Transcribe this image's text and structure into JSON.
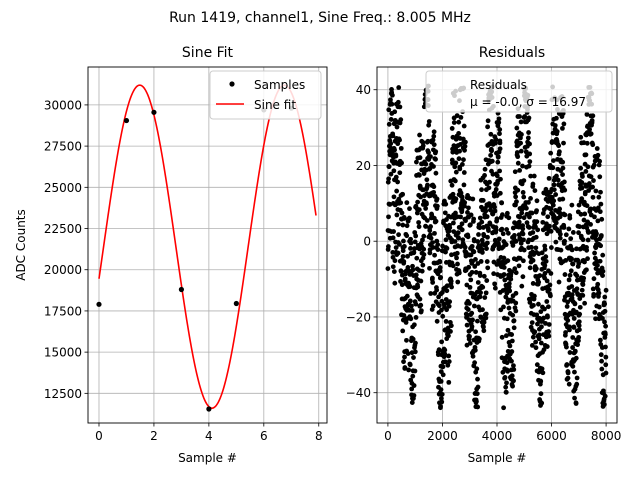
{
  "figure": {
    "suptitle": "Run 1419, channel1, Sine Freq.: 8.005 MHz"
  },
  "chart_data": [
    {
      "type": "line",
      "title": "Sine Fit",
      "xlabel": "Sample #",
      "ylabel": "ADC Counts",
      "xlim": [
        -0.4,
        8.3
      ],
      "ylim": [
        10700,
        32300
      ],
      "xticks": [
        0,
        2,
        4,
        6,
        8
      ],
      "yticks": [
        12500,
        15000,
        17500,
        20000,
        22500,
        25000,
        27500,
        30000
      ],
      "ytick_labels": [
        "12500",
        "15000",
        "17500",
        "20000",
        "22500",
        "25000",
        "27500",
        "30000"
      ],
      "grid": true,
      "legend": {
        "position": "top-right",
        "entries": [
          "Samples",
          "Sine fit"
        ]
      },
      "series": [
        {
          "name": "Samples",
          "kind": "scatter",
          "color": "#000000",
          "x": [
            0,
            1,
            2,
            3,
            4,
            5,
            6,
            7
          ],
          "y": [
            17900,
            29050,
            29550,
            18800,
            11550,
            17950,
            29700,
            29800
          ]
        },
        {
          "name": "Sine fit",
          "kind": "line",
          "color": "#ff0000",
          "model": {
            "offset": 21400,
            "amplitude": 9800,
            "cycles_per_sample": 0.19,
            "phase": -0.2
          },
          "x_range": [
            0,
            7.9
          ]
        }
      ]
    },
    {
      "type": "scatter",
      "title": "Residuals",
      "xlabel": "Sample #",
      "ylabel": "",
      "xlim": [
        -400,
        8400
      ],
      "ylim": [
        -48,
        46
      ],
      "xticks": [
        0,
        2000,
        4000,
        6000,
        8000
      ],
      "yticks": [
        -40,
        -20,
        0,
        20,
        40
      ],
      "ytick_labels": [
        "−40",
        "−20",
        "0",
        "20",
        "40"
      ],
      "grid": true,
      "legend": {
        "position": "top-right",
        "entries": [
          "Residuals",
          "μ = -0.0, σ = 16.97"
        ]
      },
      "series": [
        {
          "name": "Residuals",
          "color": "#000000",
          "n_points": 8000,
          "mean": -0.0,
          "std": 16.97,
          "envelope": {
            "min": -44,
            "max": 41
          }
        }
      ]
    }
  ],
  "colors": {
    "axes": "#000000",
    "grid": "#b0b0b0",
    "fit_line": "#ff0000",
    "marker": "#000000"
  }
}
